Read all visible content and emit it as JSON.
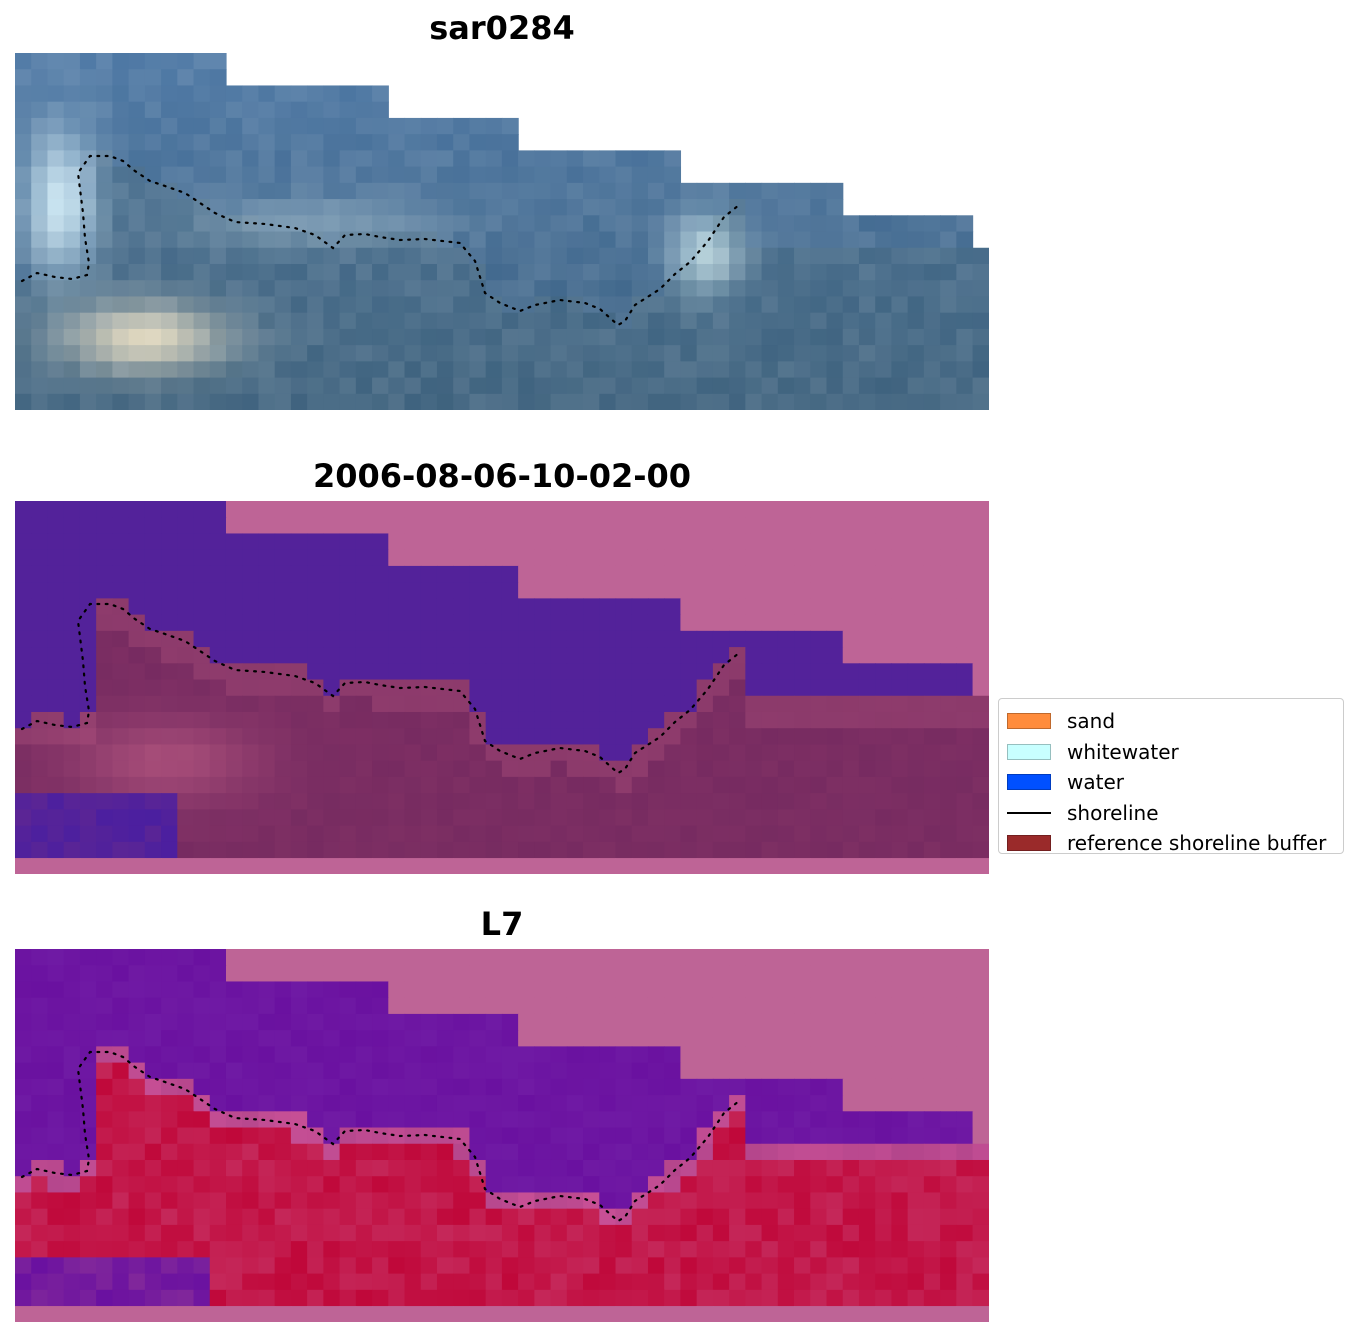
{
  "panels": [
    {
      "title": "sar0284",
      "kind": "rgb"
    },
    {
      "title": "2006-08-06-10-02-00",
      "kind": "classified"
    },
    {
      "title": "L7",
      "kind": "index"
    }
  ],
  "legend": {
    "items": [
      {
        "label": "sand",
        "color": "#ff8c3c",
        "type": "patch"
      },
      {
        "label": "whitewater",
        "color": "#c8ffff",
        "type": "patch"
      },
      {
        "label": "water",
        "color": "#0050ff",
        "type": "patch"
      },
      {
        "label": "shoreline",
        "color": "#000000",
        "type": "line"
      },
      {
        "label": "reference shoreline buffer",
        "color": "#9a2a2a",
        "type": "patch"
      }
    ]
  },
  "colors": {
    "nodata": "#be6496",
    "water_class": "#53229a",
    "land_class": "#7a2d62",
    "index_high": "#c0083a",
    "index_low": "#6a11a0"
  }
}
